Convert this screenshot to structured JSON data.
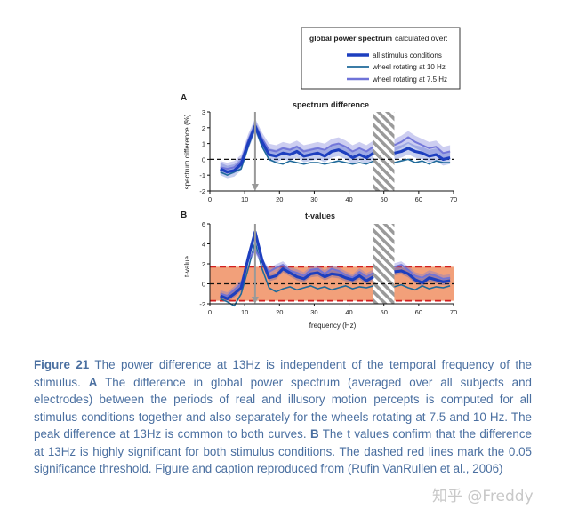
{
  "legend": {
    "title_bold": "global power spectrum",
    "title_rest": "calculated over:",
    "entries": [
      {
        "label": "all stimulus conditions",
        "color": "#1d3fbf"
      },
      {
        "label": "wheel rotating at 10 Hz",
        "color": "#1f6a9a"
      },
      {
        "label": "wheel rotating at 7.5 Hz",
        "color": "#6f73d8"
      }
    ]
  },
  "chart_data": [
    {
      "type": "line",
      "panel": "A",
      "title": "spectrum difference",
      "xlabel": "",
      "ylabel": "spectrum difference (%)",
      "xlim": [
        0,
        70
      ],
      "ylim": [
        -2,
        3
      ],
      "xticks": [
        "0",
        "10",
        "20",
        "30",
        "40",
        "50",
        "60",
        "70"
      ],
      "yticks": [
        "-2",
        "-1",
        "0",
        "1",
        "2",
        "3"
      ],
      "hatched_range": [
        47,
        53
      ],
      "marker_x": 13,
      "series": [
        {
          "name": "all stimulus conditions",
          "color": "#1d3fbf",
          "x": [
            3,
            5,
            7,
            9,
            11,
            13,
            15,
            17,
            19,
            21,
            23,
            25,
            27,
            29,
            31,
            33,
            35,
            37,
            39,
            41,
            43,
            45,
            47,
            53,
            55,
            57,
            59,
            61,
            63,
            65,
            67,
            69
          ],
          "y": [
            -0.6,
            -0.8,
            -0.7,
            -0.3,
            1.0,
            2.1,
            1.1,
            0.3,
            0.2,
            0.4,
            0.3,
            0.5,
            0.2,
            0.3,
            0.4,
            0.2,
            0.5,
            0.6,
            0.4,
            0.1,
            0.3,
            0.1,
            0.4,
            0.4,
            0.5,
            0.7,
            0.5,
            0.4,
            0.2,
            0.3,
            0.0,
            0.1
          ]
        },
        {
          "name": "wheel rotating at 10 Hz",
          "color": "#1f6a9a",
          "x": [
            3,
            5,
            7,
            9,
            11,
            13,
            15,
            17,
            19,
            21,
            23,
            25,
            27,
            29,
            31,
            33,
            35,
            37,
            39,
            41,
            43,
            45,
            47,
            53,
            55,
            57,
            59,
            61,
            63,
            65,
            67,
            69
          ],
          "y": [
            -0.8,
            -1.0,
            -0.8,
            -0.6,
            0.8,
            2.0,
            0.8,
            0.0,
            -0.2,
            -0.3,
            -0.1,
            -0.2,
            -0.3,
            -0.2,
            -0.2,
            -0.3,
            -0.2,
            -0.1,
            -0.2,
            -0.3,
            -0.2,
            -0.3,
            -0.1,
            -0.2,
            -0.1,
            0.0,
            -0.2,
            -0.1,
            -0.3,
            -0.1,
            -0.2,
            -0.2
          ]
        },
        {
          "name": "wheel rotating at 7.5 Hz",
          "color": "#6f73d8",
          "x": [
            3,
            5,
            7,
            9,
            11,
            13,
            15,
            17,
            19,
            21,
            23,
            25,
            27,
            29,
            31,
            33,
            35,
            37,
            39,
            41,
            43,
            45,
            47,
            53,
            55,
            57,
            59,
            61,
            63,
            65,
            67,
            69
          ],
          "y": [
            -0.5,
            -0.6,
            -0.5,
            -0.1,
            1.2,
            2.2,
            1.3,
            0.6,
            0.5,
            0.7,
            0.6,
            0.8,
            0.5,
            0.6,
            0.7,
            0.6,
            0.9,
            1.0,
            0.8,
            0.5,
            0.7,
            0.5,
            0.8,
            0.9,
            1.1,
            1.4,
            1.1,
            0.9,
            0.7,
            0.8,
            0.4,
            0.5
          ]
        }
      ]
    },
    {
      "type": "line",
      "panel": "B",
      "title": "t-values",
      "xlabel": "frequency (Hz)",
      "ylabel": "t-value",
      "xlim": [
        0,
        70
      ],
      "ylim": [
        -2,
        6
      ],
      "xticks": [
        "0",
        "10",
        "20",
        "30",
        "40",
        "50",
        "60",
        "70"
      ],
      "yticks": [
        "-2",
        "0",
        "2",
        "4",
        "6"
      ],
      "hatched_range": [
        47,
        53
      ],
      "marker_x": 13,
      "significance_threshold": [
        -1.7,
        1.7
      ],
      "series": [
        {
          "name": "all stimulus conditions",
          "color": "#1d3fbf",
          "x": [
            3,
            5,
            7,
            9,
            11,
            13,
            15,
            17,
            19,
            21,
            23,
            25,
            27,
            29,
            31,
            33,
            35,
            37,
            39,
            41,
            43,
            45,
            47,
            53,
            55,
            57,
            59,
            61,
            63,
            65,
            67,
            69
          ],
          "y": [
            -1.2,
            -1.5,
            -1.0,
            -0.4,
            2.6,
            5.2,
            2.4,
            0.6,
            0.8,
            1.5,
            1.1,
            0.7,
            0.5,
            1.0,
            1.1,
            0.7,
            1.0,
            0.9,
            0.6,
            0.4,
            0.8,
            0.3,
            0.7,
            1.2,
            1.3,
            1.0,
            0.4,
            0.1,
            0.6,
            0.4,
            0.2,
            0.3
          ]
        },
        {
          "name": "wheel rotating at 10 Hz",
          "color": "#1f6a9a",
          "x": [
            3,
            5,
            7,
            9,
            11,
            13,
            15,
            17,
            19,
            21,
            23,
            25,
            27,
            29,
            31,
            33,
            35,
            37,
            39,
            41,
            43,
            45,
            47,
            53,
            55,
            57,
            59,
            61,
            63,
            65,
            67,
            69
          ],
          "y": [
            -1.5,
            -1.8,
            -2.2,
            -1.0,
            1.5,
            4.2,
            1.5,
            -0.4,
            -0.8,
            -0.5,
            -0.3,
            -0.6,
            -0.4,
            -0.2,
            -0.5,
            -0.3,
            -0.6,
            -0.4,
            -0.2,
            -0.5,
            -0.3,
            -0.4,
            -0.2,
            -0.3,
            -0.1,
            -0.4,
            -0.6,
            -0.2,
            -0.5,
            -0.3,
            -0.4,
            -0.2
          ]
        },
        {
          "name": "wheel rotating at 7.5 Hz",
          "color": "#6f73d8",
          "x": [
            3,
            5,
            7,
            9,
            11,
            13,
            15,
            17,
            19,
            21,
            23,
            25,
            27,
            29,
            31,
            33,
            35,
            37,
            39,
            41,
            43,
            45,
            47,
            53,
            55,
            57,
            59,
            61,
            63,
            65,
            67,
            69
          ],
          "y": [
            -1.0,
            -1.2,
            -0.6,
            0.0,
            2.4,
            3.4,
            2.2,
            1.2,
            1.6,
            1.9,
            1.3,
            1.1,
            0.8,
            1.4,
            1.5,
            1.0,
            1.5,
            1.3,
            0.9,
            0.6,
            1.2,
            0.7,
            1.1,
            1.7,
            1.9,
            1.4,
            0.8,
            0.6,
            1.0,
            0.8,
            0.5,
            0.6
          ]
        }
      ]
    }
  ],
  "caption": {
    "label": "Figure 21",
    "part1": " The power difference at 13Hz is independent of the temporal frequency of the stimulus. ",
    "a": "A",
    "part2": " The difference in global power spectrum (averaged over all subjects and electrodes) between the periods of real and illusory motion percepts is computed for all stimulus conditions together and also separately for the wheels rotating at 7.5 and 10 Hz. The peak difference at 13Hz is common to both curves. ",
    "b": "B",
    "part3": " The t values confirm that the difference at 13Hz is highly significant for both stimulus conditions. The dashed red lines mark the 0.05 significance threshold. Figure and caption reproduced from (Rufin VanRullen et al., 2006)"
  },
  "watermark": "知乎 @Freddy"
}
